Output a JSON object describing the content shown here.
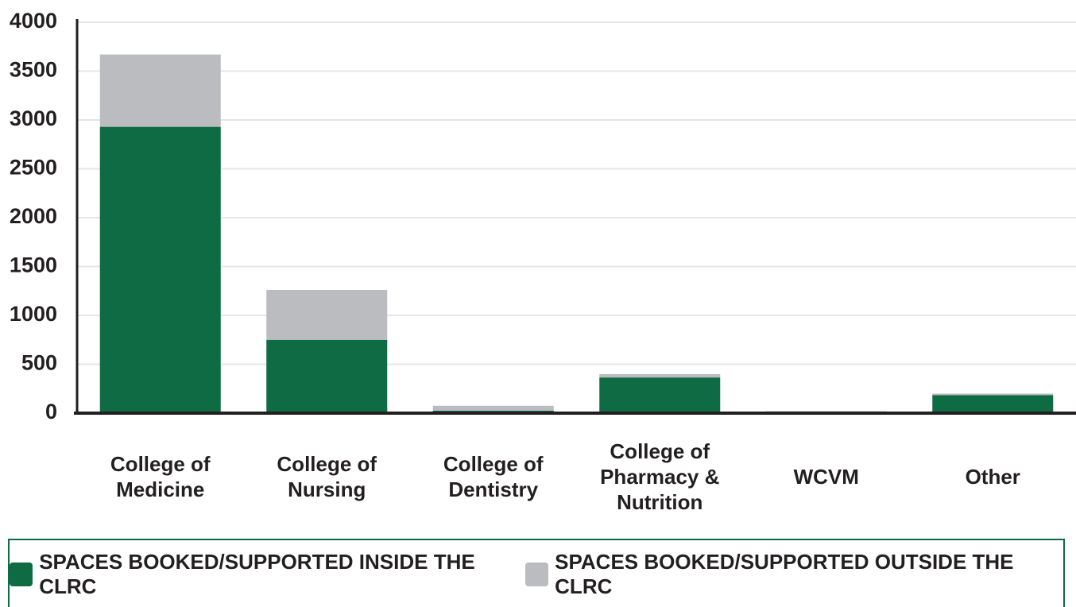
{
  "chart_data": {
    "type": "stacked_bar",
    "categories": [
      "College of Medicine",
      "College of Nursing",
      "College of Dentistry",
      "College of Pharmacy & Nutrition",
      "WCVM",
      "Other"
    ],
    "series": [
      {
        "name": "SPACES BOOKED/SUPPORTED INSIDE THE CLRC",
        "color": "#0e6b43",
        "values": [
          2930,
          750,
          25,
          365,
          15,
          185
        ]
      },
      {
        "name": "SPACES BOOKED/SUPPORTED OUTSIDE THE CLRC",
        "color": "#bbbcbf",
        "values": [
          740,
          510,
          50,
          35,
          5,
          15
        ]
      }
    ],
    "ylim": [
      0,
      4000
    ],
    "yticks": [
      0,
      500,
      1000,
      1500,
      2000,
      2500,
      3000,
      3500,
      4000
    ],
    "grid": true
  }
}
